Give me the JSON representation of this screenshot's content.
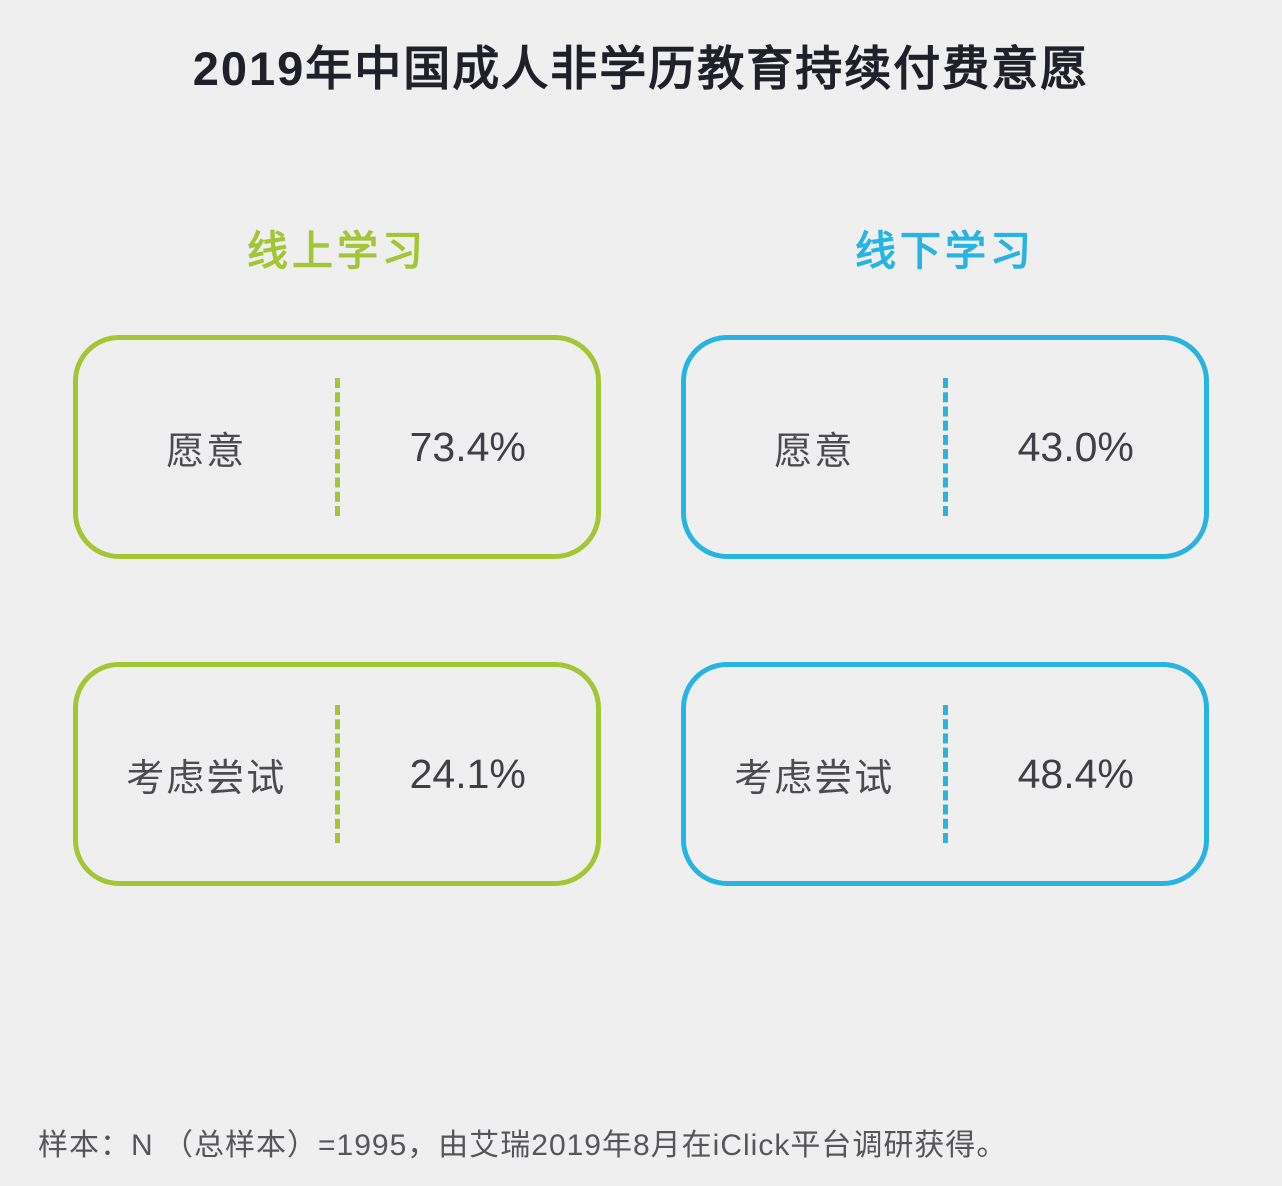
{
  "page": {
    "title": "2019年中国成人非学历教育持续付费意愿",
    "footnote": "样本：N （总样本）=1995，由艾瑞2019年8月在iClick平台调研获得。"
  },
  "colors": {
    "online_accent": "#a3c635",
    "offline_accent": "#27b4e2",
    "title_text": "#20202a",
    "body_text": "#4b4b52",
    "background": "#efeff0"
  },
  "columns": [
    {
      "header": "线上学习",
      "accent": "#a3c635",
      "cards": [
        {
          "label": "愿意",
          "value": "73.4%"
        },
        {
          "label": "考虑尝试",
          "value": "24.1%"
        }
      ]
    },
    {
      "header": "线下学习",
      "accent": "#27b4e2",
      "cards": [
        {
          "label": "愿意",
          "value": "43.0%"
        },
        {
          "label": "考虑尝试",
          "value": "48.4%"
        }
      ]
    }
  ],
  "chart_data": {
    "type": "table",
    "title": "2019年中国成人非学历教育持续付费意愿",
    "categories": [
      "愿意",
      "考虑尝试"
    ],
    "series": [
      {
        "name": "线上学习",
        "values": [
          73.4,
          24.1
        ]
      },
      {
        "name": "线下学习",
        "values": [
          43.0,
          48.4
        ]
      }
    ],
    "unit": "%",
    "note": "样本：N（总样本）=1995，由艾瑞2019年8月在iClick平台调研获得。"
  }
}
